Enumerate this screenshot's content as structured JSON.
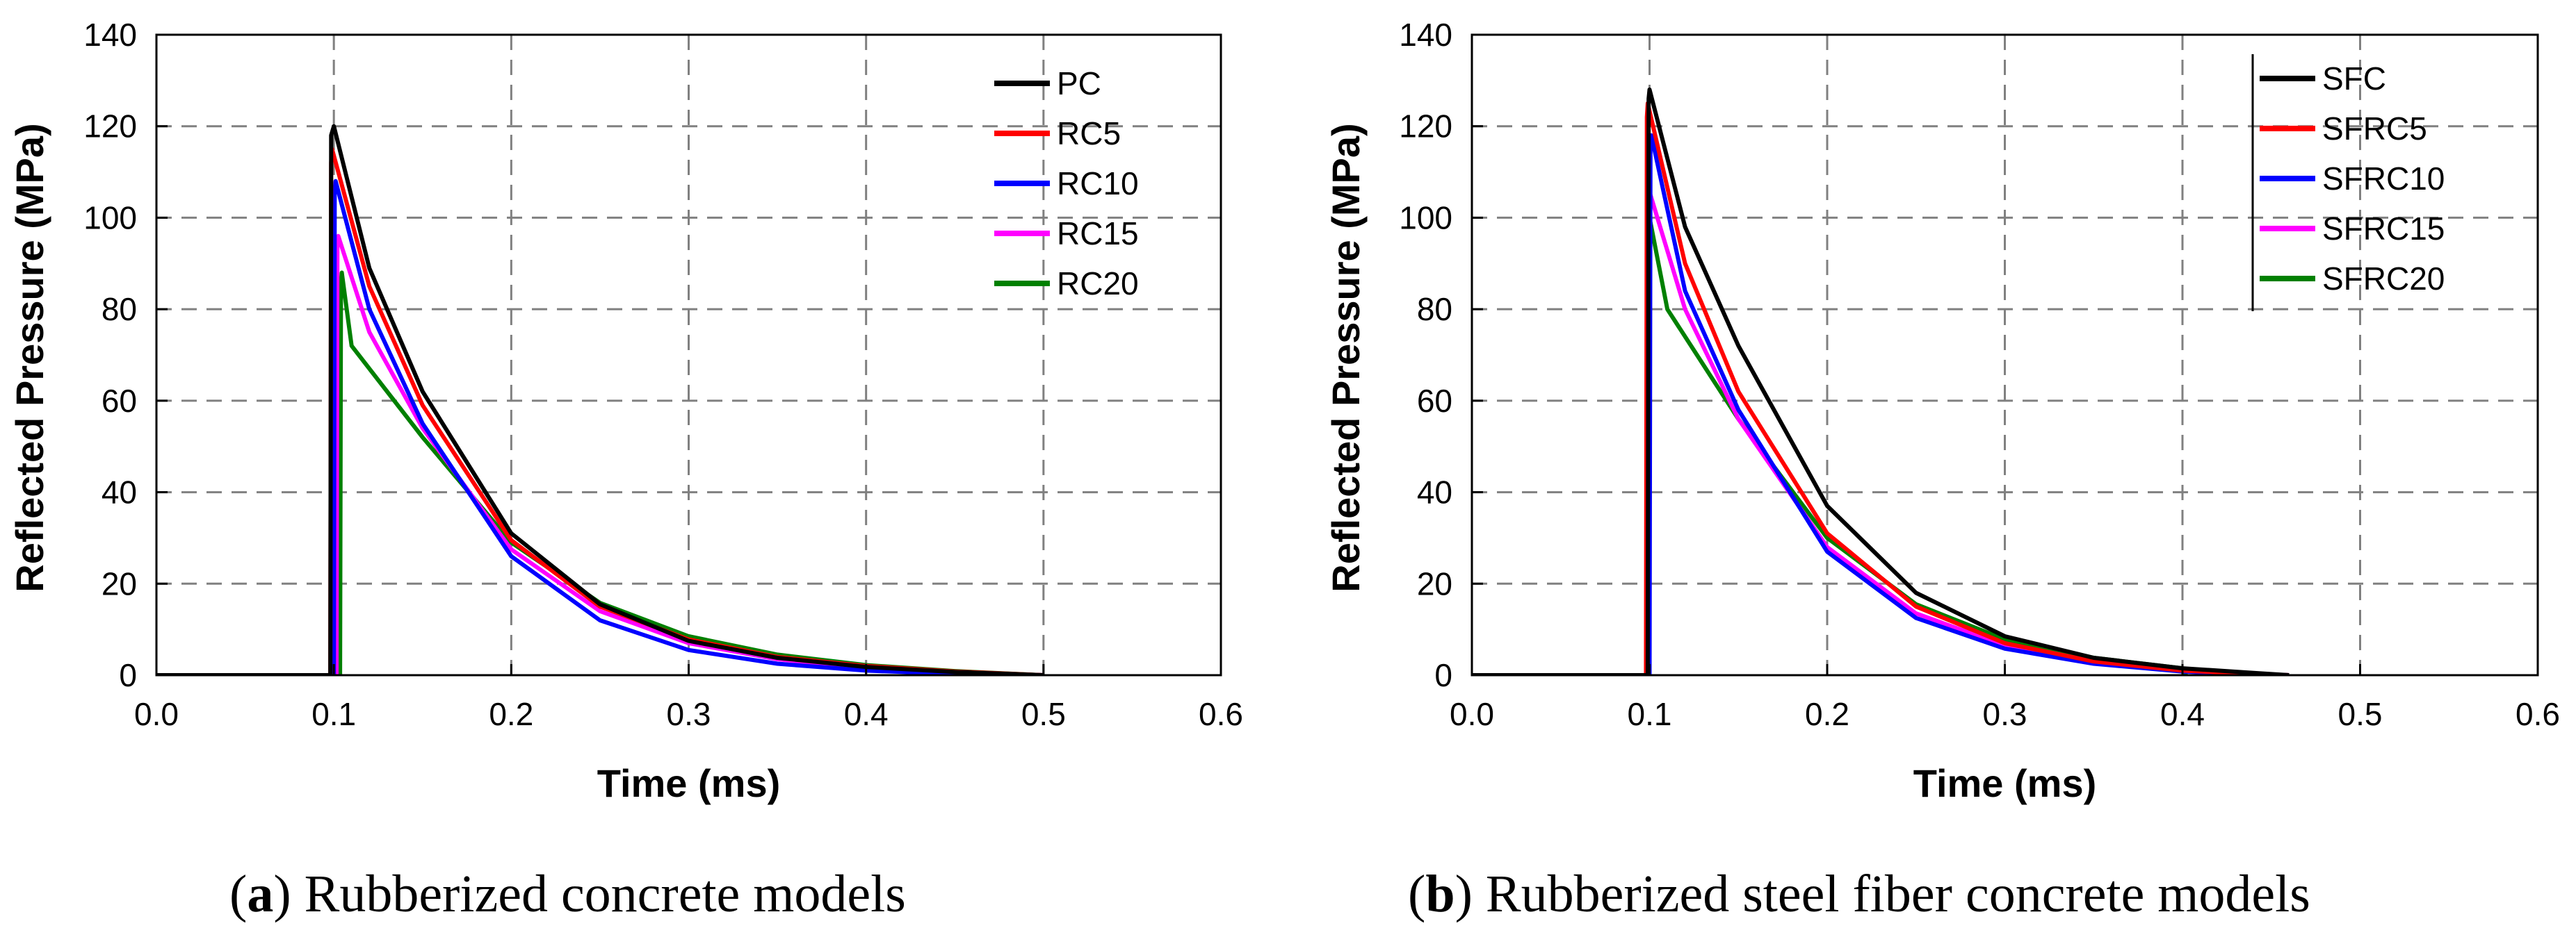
{
  "chart_data": [
    {
      "type": "line",
      "caption_label": "a",
      "caption_text": "Rubberized concrete models",
      "xlabel": "Time (ms)",
      "ylabel": "Reflected Pressure (MPa)",
      "xlim": [
        0,
        0.6
      ],
      "ylim": [
        0,
        140
      ],
      "xticks": [
        "0.0",
        "0.1",
        "0.2",
        "0.3",
        "0.4",
        "0.5",
        "0.6"
      ],
      "yticks": [
        "0",
        "20",
        "40",
        "60",
        "80",
        "100",
        "120",
        "140"
      ],
      "grid": true,
      "legend_position": "top-right",
      "series": [
        {
          "name": "PC",
          "color": "#000000",
          "points": [
            [
              0,
              0
            ],
            [
              0.098,
              0
            ],
            [
              0.0985,
              118
            ],
            [
              0.1,
              120
            ],
            [
              0.12,
              89
            ],
            [
              0.15,
              62
            ],
            [
              0.2,
              31
            ],
            [
              0.25,
              15.5
            ],
            [
              0.3,
              7.5
            ],
            [
              0.35,
              3.8
            ],
            [
              0.4,
              1.8
            ],
            [
              0.45,
              0.7
            ],
            [
              0.5,
              0
            ]
          ]
        },
        {
          "name": "RC5",
          "color": "#ff0000",
          "points": [
            [
              0,
              0
            ],
            [
              0.098,
              0
            ],
            [
              0.0985,
              112
            ],
            [
              0.099,
              115
            ],
            [
              0.12,
              85
            ],
            [
              0.15,
              59
            ],
            [
              0.2,
              29.5
            ],
            [
              0.25,
              15
            ],
            [
              0.3,
              7.8
            ],
            [
              0.35,
              4
            ],
            [
              0.4,
              2
            ],
            [
              0.45,
              0.8
            ],
            [
              0.5,
              0
            ]
          ]
        },
        {
          "name": "RC10",
          "color": "#0000ff",
          "points": [
            [
              0,
              0
            ],
            [
              0.1,
              0
            ],
            [
              0.1005,
              106
            ],
            [
              0.101,
              108
            ],
            [
              0.12,
              80
            ],
            [
              0.15,
              55
            ],
            [
              0.2,
              26
            ],
            [
              0.25,
              12
            ],
            [
              0.3,
              5.5
            ],
            [
              0.35,
              2.5
            ],
            [
              0.4,
              1
            ],
            [
              0.45,
              0.3
            ],
            [
              0.5,
              0
            ]
          ]
        },
        {
          "name": "RC15",
          "color": "#ff00ff",
          "points": [
            [
              0,
              0
            ],
            [
              0.1015,
              0
            ],
            [
              0.102,
              94
            ],
            [
              0.1025,
              96
            ],
            [
              0.12,
              75
            ],
            [
              0.15,
              54
            ],
            [
              0.2,
              27.5
            ],
            [
              0.25,
              14
            ],
            [
              0.3,
              7
            ],
            [
              0.35,
              3.5
            ],
            [
              0.4,
              1.5
            ],
            [
              0.45,
              0.6
            ],
            [
              0.5,
              0
            ]
          ]
        },
        {
          "name": "RC20",
          "color": "#008000",
          "points": [
            [
              0,
              0
            ],
            [
              0.1035,
              0
            ],
            [
              0.104,
              86
            ],
            [
              0.1045,
              88
            ],
            [
              0.11,
              72
            ],
            [
              0.15,
              52
            ],
            [
              0.2,
              29
            ],
            [
              0.25,
              15.8
            ],
            [
              0.3,
              8.5
            ],
            [
              0.35,
              4.5
            ],
            [
              0.4,
              2.2
            ],
            [
              0.45,
              0.9
            ],
            [
              0.5,
              0
            ]
          ]
        }
      ]
    },
    {
      "type": "line",
      "caption_label": "b",
      "caption_text": "Rubberized steel fiber concrete models",
      "xlabel": "Time (ms)",
      "ylabel": "Reflected Pressure (MPa)",
      "xlim": [
        0,
        0.6
      ],
      "ylim": [
        0,
        140
      ],
      "xticks": [
        "0.0",
        "0.1",
        "0.2",
        "0.3",
        "0.4",
        "0.5",
        "0.6"
      ],
      "yticks": [
        "0",
        "20",
        "40",
        "60",
        "80",
        "100",
        "120",
        "140"
      ],
      "grid": true,
      "legend_position": "top-right",
      "series": [
        {
          "name": "SFC",
          "color": "#000000",
          "points": [
            [
              0,
              0
            ],
            [
              0.099,
              0
            ],
            [
              0.0995,
              126
            ],
            [
              0.1,
              128
            ],
            [
              0.12,
              98
            ],
            [
              0.15,
              72
            ],
            [
              0.2,
              37
            ],
            [
              0.25,
              18
            ],
            [
              0.3,
              8.5
            ],
            [
              0.35,
              3.8
            ],
            [
              0.4,
              1.5
            ],
            [
              0.44,
              0.5
            ],
            [
              0.46,
              0
            ]
          ]
        },
        {
          "name": "SFRC5",
          "color": "#ff0000",
          "points": [
            [
              0,
              0
            ],
            [
              0.098,
              0
            ],
            [
              0.0985,
              122
            ],
            [
              0.099,
              125
            ],
            [
              0.12,
              90
            ],
            [
              0.15,
              62
            ],
            [
              0.2,
              31
            ],
            [
              0.25,
              15
            ],
            [
              0.3,
              7
            ],
            [
              0.35,
              3
            ],
            [
              0.4,
              1
            ],
            [
              0.44,
              0.3
            ],
            [
              0.46,
              0
            ]
          ]
        },
        {
          "name": "SFRC10",
          "color": "#0000ff",
          "points": [
            [
              0,
              0
            ],
            [
              0.1,
              0
            ],
            [
              0.1005,
              116
            ],
            [
              0.101,
              118
            ],
            [
              0.12,
              84
            ],
            [
              0.15,
              58
            ],
            [
              0.2,
              27
            ],
            [
              0.25,
              12.5
            ],
            [
              0.3,
              5.8
            ],
            [
              0.35,
              2.5
            ],
            [
              0.4,
              0.8
            ],
            [
              0.44,
              0.2
            ],
            [
              0.46,
              0
            ]
          ]
        },
        {
          "name": "SFRC15",
          "color": "#ff00ff",
          "points": [
            [
              0,
              0
            ],
            [
              0.0995,
              0
            ],
            [
              0.1,
              103
            ],
            [
              0.1005,
              105
            ],
            [
              0.12,
              80
            ],
            [
              0.15,
              56
            ],
            [
              0.2,
              28
            ],
            [
              0.25,
              13.5
            ],
            [
              0.3,
              6.5
            ],
            [
              0.35,
              3
            ],
            [
              0.4,
              1
            ],
            [
              0.44,
              0.3
            ],
            [
              0.46,
              0
            ]
          ]
        },
        {
          "name": "SFRC20",
          "color": "#008000",
          "points": [
            [
              0,
              0
            ],
            [
              0.0995,
              0
            ],
            [
              0.1,
              97
            ],
            [
              0.1005,
              99
            ],
            [
              0.11,
              80
            ],
            [
              0.15,
              56
            ],
            [
              0.2,
              30
            ],
            [
              0.25,
              15.5
            ],
            [
              0.3,
              7.8
            ],
            [
              0.35,
              3.8
            ],
            [
              0.4,
              1.5
            ],
            [
              0.402,
              0
            ]
          ]
        }
      ]
    }
  ]
}
